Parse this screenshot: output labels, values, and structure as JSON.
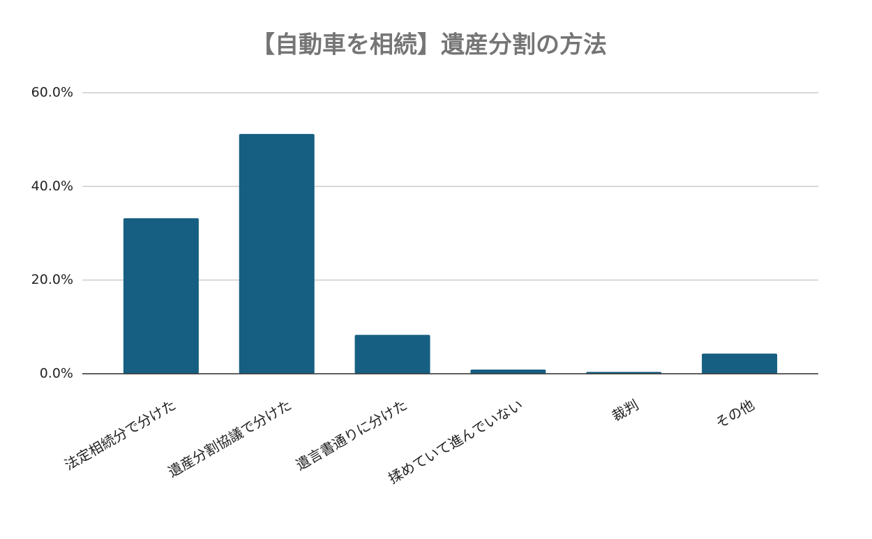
{
  "chart_data": {
    "type": "bar",
    "title": "【自動車を相続】遺産分割の方法",
    "categories": [
      "法定相続分で分けた",
      "遺産分割協議で分けた",
      "遺言書通りに分けた",
      "揉めていて進んでいない",
      "裁判",
      "その他"
    ],
    "values": [
      33.2,
      51.2,
      8.3,
      0.9,
      0.4,
      4.3
    ],
    "color": "#175f82",
    "ylim": [
      0,
      60
    ],
    "yticks": [
      {
        "value": 0,
        "label": "0.0%"
      },
      {
        "value": 20,
        "label": "20.0%"
      },
      {
        "value": 40,
        "label": "40.0%"
      },
      {
        "value": 60,
        "label": "60.0%"
      }
    ],
    "grid": true
  }
}
